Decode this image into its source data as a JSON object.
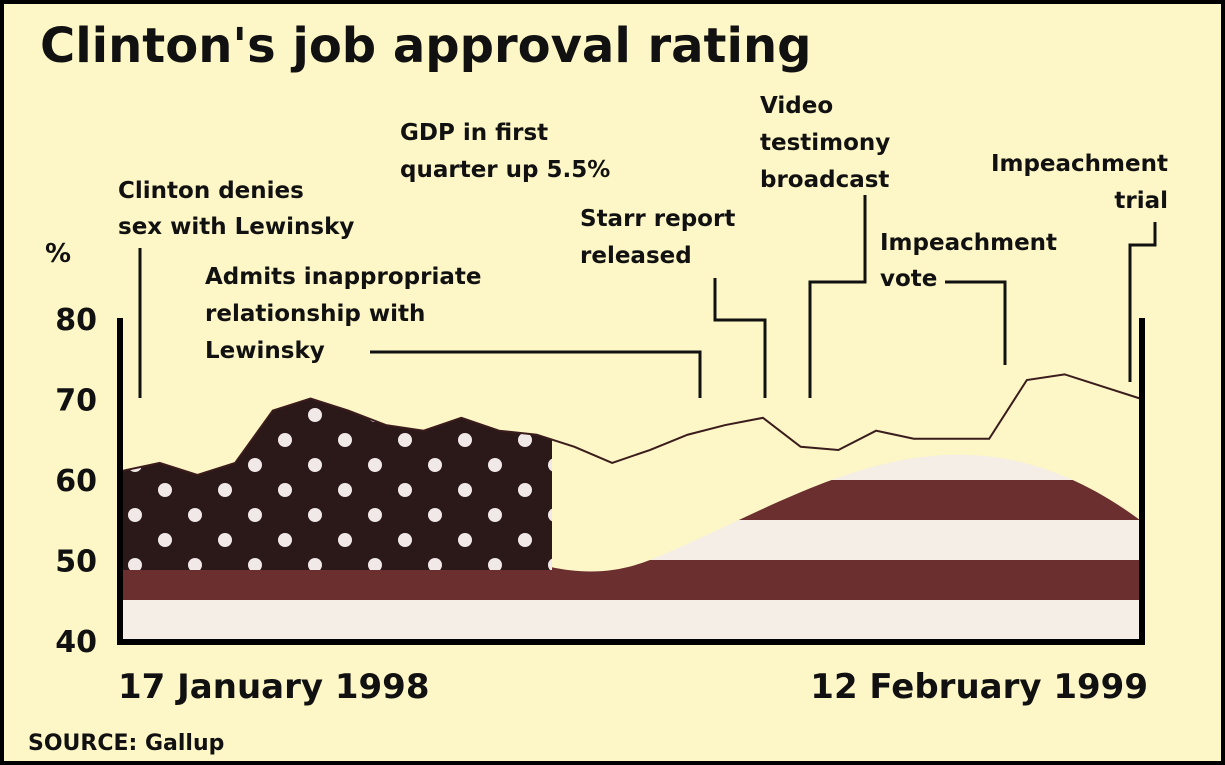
{
  "chart_data": {
    "type": "area",
    "title": "Clinton's job approval rating",
    "y_label": "%",
    "source": "SOURCE: Gallup",
    "categories": [
      "17 January 1998",
      null,
      null,
      null,
      null,
      null,
      null,
      null,
      null,
      null,
      null,
      null,
      null,
      null,
      null,
      null,
      null,
      null,
      null,
      null,
      null,
      null,
      null,
      null,
      null,
      null,
      null,
      "12 February 1999"
    ],
    "values": [
      61,
      62,
      60.5,
      62,
      68.5,
      70,
      68.5,
      66.7,
      66,
      67.6,
      66,
      65.5,
      64,
      62,
      63.6,
      65.5,
      66.7,
      67.6,
      64,
      63.6,
      66,
      65,
      65,
      65,
      72.3,
      73,
      71.5,
      70
    ],
    "color": "#6b2f2f",
    "ylim": [
      40,
      80
    ],
    "yticks": [
      40,
      50,
      60,
      70,
      80
    ],
    "annotations": [
      [
        "Clinton denies",
        "sex with Lewinsky"
      ],
      [
        "Admits inappropriate",
        "relationship with",
        "Lewinsky"
      ],
      [
        "GDP in first",
        "quarter up 5.5%"
      ],
      [
        "Starr report",
        "released"
      ],
      [
        "Video",
        "testimony",
        "broadcast"
      ],
      [
        "Impeachment",
        "vote"
      ],
      [
        "Impeachment",
        "trial"
      ]
    ]
  }
}
